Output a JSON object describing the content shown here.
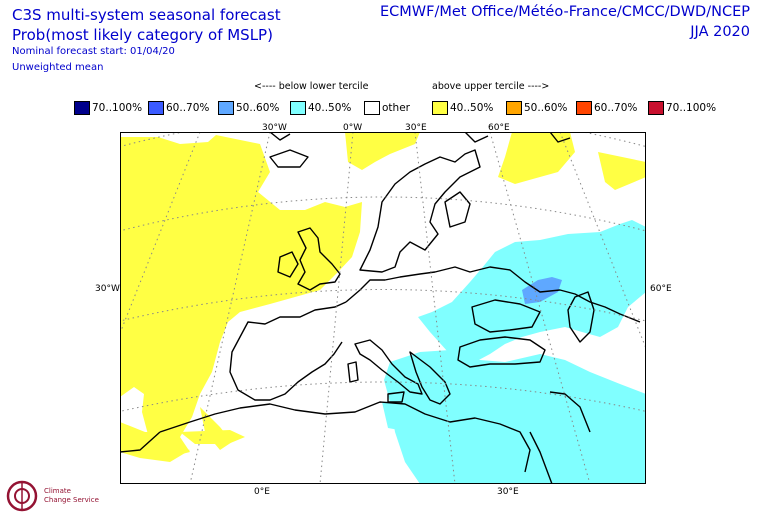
{
  "header": {
    "title_line1": "C3S multi-system seasonal forecast",
    "title_line2": "Prob(most likely category of MSLP)",
    "nominal_start": "Nominal forecast start: 01/04/20",
    "mean_type": "Unweighted mean",
    "centres": "ECMWF/Met Office/Météo-France/CMCC/DWD/NCEP",
    "season": "JJA 2020"
  },
  "legend": {
    "below_label": "<---- below lower tercile",
    "above_label": "above upper tercile ---->",
    "items": [
      {
        "label": "70..100%",
        "color": "#00008b"
      },
      {
        "label": "60..70%",
        "color": "#3b5bff"
      },
      {
        "label": "50..60%",
        "color": "#5fa8ff"
      },
      {
        "label": "40..50%",
        "color": "#80ffff"
      },
      {
        "label": "other",
        "color": "#ffffff"
      },
      {
        "label": "40..50%",
        "color": "#ffff44"
      },
      {
        "label": "50..60%",
        "color": "#ffa500"
      },
      {
        "label": "60..70%",
        "color": "#ff4500"
      },
      {
        "label": "70..100%",
        "color": "#c8102e"
      }
    ]
  },
  "axes": {
    "top_ticks": [
      "30°W",
      "0°W",
      "30°E",
      "60°E"
    ],
    "bottom_ticks": [
      "0°E",
      "30°E"
    ],
    "left_tick": "30°W",
    "right_tick": "60°E"
  },
  "colors": {
    "land_outline": "#000000",
    "graticule": "#888888"
  },
  "logo": {
    "icon": "climate-change-service-logo",
    "text_line1": "Climate",
    "text_line2": "Change Service"
  }
}
